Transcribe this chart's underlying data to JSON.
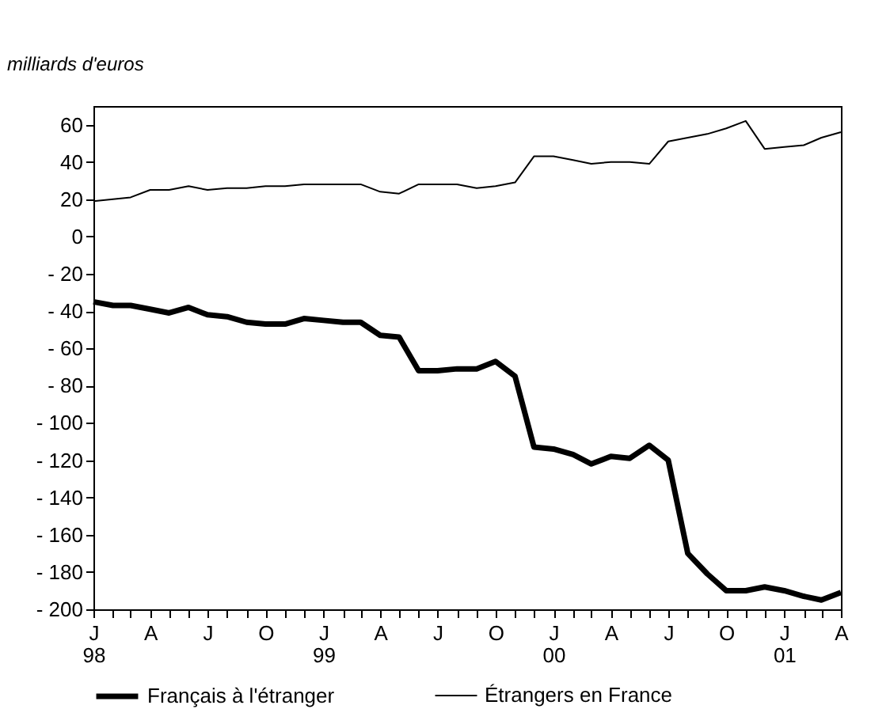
{
  "chart_data": {
    "type": "line",
    "ylabel": "milliards d'euros",
    "x": [
      "1998-01",
      "1998-02",
      "1998-03",
      "1998-04",
      "1998-05",
      "1998-06",
      "1998-07",
      "1998-08",
      "1998-09",
      "1998-10",
      "1998-11",
      "1998-12",
      "1999-01",
      "1999-02",
      "1999-03",
      "1999-04",
      "1999-05",
      "1999-06",
      "1999-07",
      "1999-08",
      "1999-09",
      "1999-10",
      "1999-11",
      "1999-12",
      "2000-01",
      "2000-02",
      "2000-03",
      "2000-04",
      "2000-05",
      "2000-06",
      "2000-07",
      "2000-08",
      "2000-09",
      "2000-10",
      "2000-11",
      "2000-12",
      "2001-01",
      "2001-02",
      "2001-03",
      "2001-04"
    ],
    "series": [
      {
        "name": "Français à l'étranger",
        "color": "#000000",
        "values": [
          -35,
          -37,
          -37,
          -39,
          -41,
          -38,
          -42,
          -43,
          -46,
          -47,
          -47,
          -44,
          -45,
          -46,
          -46,
          -53,
          -54,
          -72,
          -72,
          -71,
          -71,
          -67,
          -75,
          -113,
          -114,
          -117,
          -122,
          -118,
          -119,
          -112,
          -120,
          -170,
          -181,
          -190,
          -190,
          -188,
          -190,
          -193,
          -195,
          -191
        ]
      },
      {
        "name": "Étrangers en France",
        "color": "#000000",
        "values": [
          19,
          20,
          21,
          25,
          25,
          27,
          25,
          26,
          26,
          27,
          27,
          28,
          28,
          28,
          28,
          24,
          23,
          28,
          28,
          28,
          26,
          27,
          29,
          43,
          43,
          41,
          39,
          40,
          40,
          39,
          51,
          53,
          55,
          58,
          62,
          47,
          48,
          49,
          53,
          56
        ]
      }
    ],
    "xlim": [
      "1998-01",
      "2001-04"
    ],
    "xticks": [
      {
        "value": "1998-01",
        "label": "J\n98"
      },
      {
        "value": "1998-02",
        "label": null
      },
      {
        "value": "1998-03",
        "label": null
      },
      {
        "value": "1998-04",
        "label": "A"
      },
      {
        "value": "1998-05",
        "label": null
      },
      {
        "value": "1998-06",
        "label": null
      },
      {
        "value": "1998-07",
        "label": "J"
      },
      {
        "value": "1998-08",
        "label": null
      },
      {
        "value": "1998-09",
        "label": null
      },
      {
        "value": "1998-10",
        "label": "O"
      },
      {
        "value": "1998-11",
        "label": null
      },
      {
        "value": "1998-12",
        "label": null
      },
      {
        "value": "1999-01",
        "label": "J\n99"
      },
      {
        "value": "1999-02",
        "label": null
      },
      {
        "value": "1999-03",
        "label": null
      },
      {
        "value": "1999-04",
        "label": "A"
      },
      {
        "value": "1999-05",
        "label": null
      },
      {
        "value": "1999-06",
        "label": null
      },
      {
        "value": "1999-07",
        "label": "J"
      },
      {
        "value": "1999-08",
        "label": null
      },
      {
        "value": "1999-09",
        "label": null
      },
      {
        "value": "1999-10",
        "label": "O"
      },
      {
        "value": "1999-11",
        "label": null
      },
      {
        "value": "1999-12",
        "label": null
      },
      {
        "value": "2000-01",
        "label": "J\n00"
      },
      {
        "value": "2000-02",
        "label": null
      },
      {
        "value": "2000-03",
        "label": null
      },
      {
        "value": "2000-04",
        "label": "A"
      },
      {
        "value": "2000-05",
        "label": null
      },
      {
        "value": "2000-06",
        "label": null
      },
      {
        "value": "2000-07",
        "label": "J"
      },
      {
        "value": "2000-08",
        "label": null
      },
      {
        "value": "2000-09",
        "label": null
      },
      {
        "value": "2000-10",
        "label": "O"
      },
      {
        "value": "2000-11",
        "label": null
      },
      {
        "value": "2000-12",
        "label": null
      },
      {
        "value": "2001-01",
        "label": "J\n01"
      },
      {
        "value": "2001-02",
        "label": null
      },
      {
        "value": "2001-03",
        "label": null
      },
      {
        "value": "2001-04",
        "label": "A"
      }
    ],
    "ylim": [
      -200,
      70
    ],
    "yticks": [
      {
        "value": 60,
        "label": "60"
      },
      {
        "value": 40,
        "label": "40"
      },
      {
        "value": 20,
        "label": "20"
      },
      {
        "value": 0,
        "label": "0"
      },
      {
        "value": -20,
        "label": "- 20"
      },
      {
        "value": -40,
        "label": "- 40"
      },
      {
        "value": -60,
        "label": "- 60"
      },
      {
        "value": -80,
        "label": "- 80"
      },
      {
        "value": -100,
        "label": "- 100"
      },
      {
        "value": -120,
        "label": "- 120"
      },
      {
        "value": -140,
        "label": "- 140"
      },
      {
        "value": -160,
        "label": "- 160"
      },
      {
        "value": -180,
        "label": "- 180"
      },
      {
        "value": -200,
        "label": "- 200"
      }
    ],
    "grid": false,
    "legend": "bottom",
    "marker": "none",
    "line_style": "solid"
  }
}
